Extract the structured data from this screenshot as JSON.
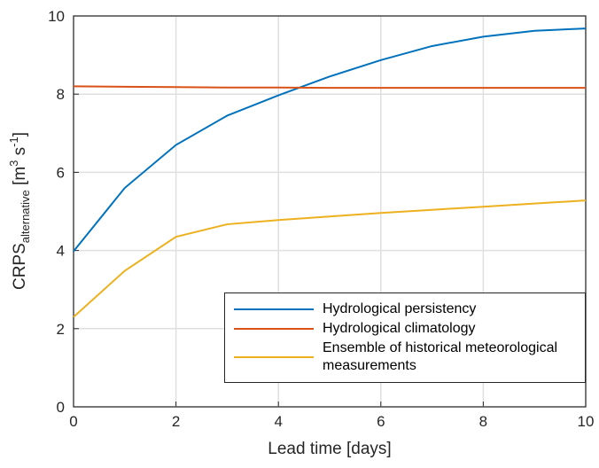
{
  "chart_data": {
    "type": "line",
    "xlabel": "Lead time [days]",
    "ylabel": {
      "main": "CRPS",
      "subscript": "alternative",
      "unit_open": " [m",
      "unit_sup1": "3",
      "unit_mid": " s",
      "unit_sup2": "-1",
      "unit_close": "]"
    },
    "x": [
      0,
      1,
      2,
      3,
      4,
      5,
      6,
      7,
      8,
      9,
      10
    ],
    "series": [
      {
        "name": "Hydrological persistency",
        "color": "#0072bd",
        "values": [
          3.98,
          5.6,
          6.7,
          7.45,
          7.97,
          8.45,
          8.87,
          9.23,
          9.47,
          9.62,
          9.68
        ]
      },
      {
        "name": "Hydrological climatology",
        "color": "#d95319",
        "values": [
          8.2,
          8.19,
          8.18,
          8.17,
          8.17,
          8.16,
          8.16,
          8.16,
          8.16,
          8.16,
          8.16
        ]
      },
      {
        "name": "Ensemble of historical meteorological measurements",
        "color": "#edb120",
        "values": [
          2.3,
          3.48,
          4.35,
          4.67,
          4.78,
          4.87,
          4.96,
          5.04,
          5.12,
          5.2,
          5.28
        ]
      }
    ],
    "xlim": [
      0,
      10
    ],
    "xticks": [
      0,
      2,
      4,
      6,
      8,
      10
    ],
    "ylim": [
      0,
      10
    ],
    "yticks": [
      0,
      2,
      4,
      6,
      8,
      10
    ],
    "grid": true,
    "legend_loc": "lower right"
  }
}
